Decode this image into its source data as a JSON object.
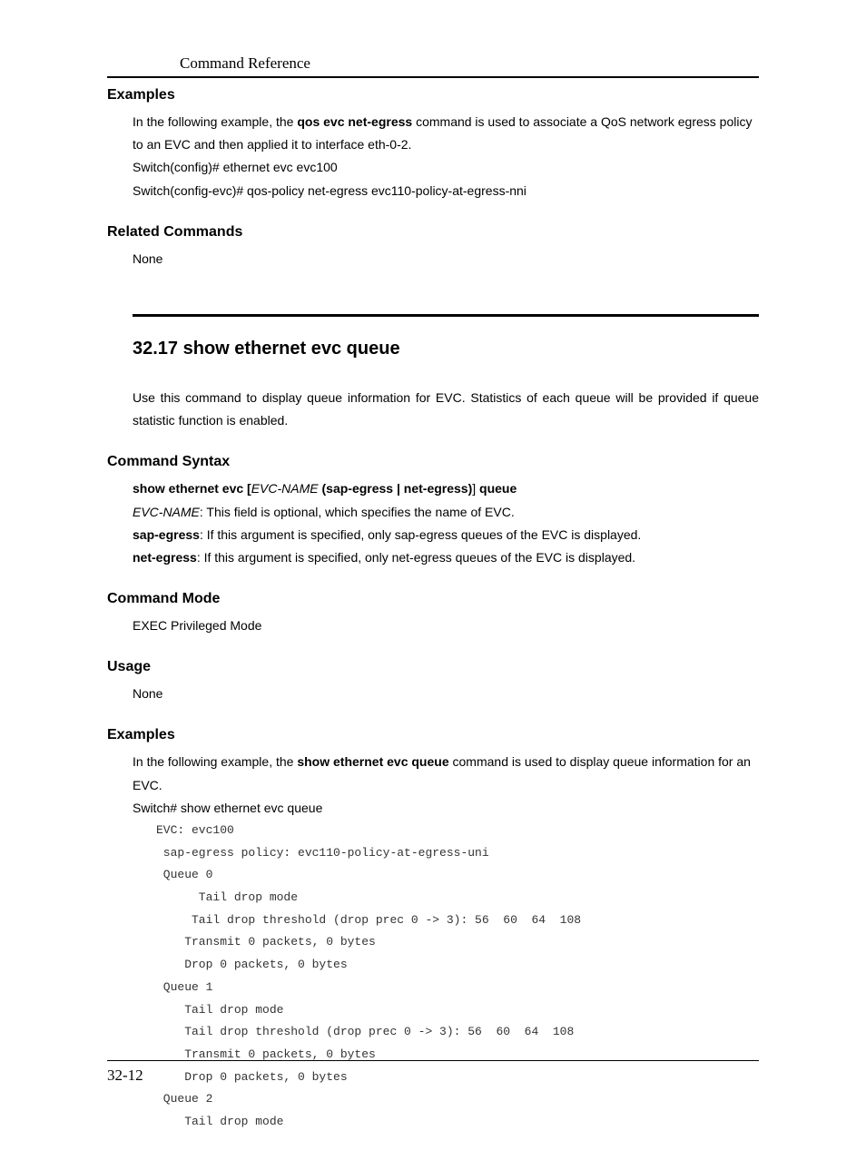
{
  "header": {
    "title": "Command Reference"
  },
  "sections": {
    "examples1": {
      "heading": "Examples",
      "intro_part1": "In the following example, the ",
      "intro_bold": "qos evc net-egress",
      "intro_part2": " command is used to associate a QoS network egress policy to an EVC and then applied it to interface eth-0-2.",
      "line1": "Switch(config)# ethernet evc evc100",
      "line2": "Switch(config-evc)# qos-policy net-egress evc110-policy-at-egress-nni"
    },
    "related_commands": {
      "heading": "Related Commands",
      "content": "None"
    },
    "main_section": {
      "heading": "32.17  show ethernet evc queue",
      "description": "Use this command to display queue information for EVC. Statistics of each queue will be provided if queue statistic function is enabled."
    },
    "command_syntax": {
      "heading": "Command Syntax",
      "syntax_part1": "show ethernet evc [",
      "syntax_italic1": "EVC-NAME",
      "syntax_part2": " (sap-egress | net-egress)",
      "syntax_part3": "]",
      "syntax_part4": " queue",
      "desc1_italic": "EVC-NAME",
      "desc1_text": ": This field is optional, which specifies the name of EVC.",
      "desc2_bold": "sap-egress",
      "desc2_text": ": If this argument is specified, only sap-egress queues of the EVC is displayed.",
      "desc3_bold": "net-egress",
      "desc3_text": ": If this argument is specified, only net-egress queues of the EVC is displayed."
    },
    "command_mode": {
      "heading": "Command Mode",
      "content": "EXEC Privileged Mode"
    },
    "usage": {
      "heading": "Usage",
      "content": "None"
    },
    "examples2": {
      "heading": "Examples",
      "intro_part1": "In the following example, the ",
      "intro_bold": "show ethernet evc queue",
      "intro_part2": " command is used to display queue information for an EVC.",
      "cmd_line": "Switch# show ethernet evc queue",
      "output": "EVC: evc100\n sap-egress policy: evc110-policy-at-egress-uni\n Queue 0\n      Tail drop mode\n     Tail drop threshold (drop prec 0 -> 3): 56  60  64  108\n    Transmit 0 packets, 0 bytes\n    Drop 0 packets, 0 bytes\n Queue 1\n    Tail drop mode\n    Tail drop threshold (drop prec 0 -> 3): 56  60  64  108\n    Transmit 0 packets, 0 bytes\n    Drop 0 packets, 0 bytes\n Queue 2\n    Tail drop mode"
    }
  },
  "footer": {
    "page_number": "32-12"
  },
  "styles": {
    "background_color": "#ffffff",
    "text_color": "#000000",
    "heading_fontsize": 16,
    "main_heading_fontsize": 20,
    "body_fontsize": 14,
    "code_fontsize": 13,
    "border_color": "#000000"
  }
}
